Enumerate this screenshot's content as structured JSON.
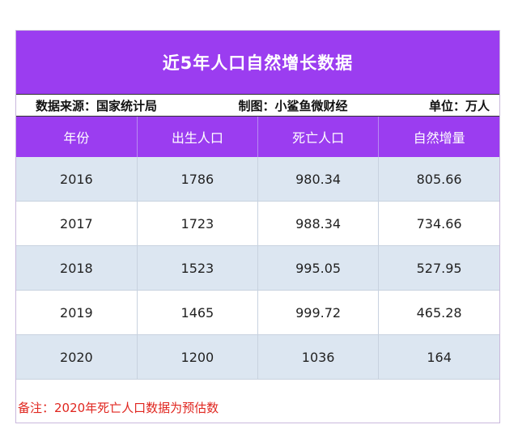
{
  "title": "近5年人口自然增长数据",
  "meta": {
    "source": "数据来源：国家统计局",
    "maker": "制图：小鲨鱼微财经",
    "unit": "单位：万人"
  },
  "headers": [
    "年份",
    "出生人口",
    "死亡人口",
    "自然增量"
  ],
  "rows": [
    [
      "2016",
      "1786",
      "980.34",
      "805.66"
    ],
    [
      "2017",
      "1723",
      "988.34",
      "734.66"
    ],
    [
      "2018",
      "1523",
      "995.05",
      "527.95"
    ],
    [
      "2019",
      "1465",
      "999.72",
      "465.28"
    ],
    [
      "2020",
      "1200",
      "1036",
      "164"
    ]
  ],
  "note": "备注：2020年死亡人口数据为预估数",
  "colors": {
    "header_bg": "#9b3df0",
    "shaded_row": "#dce6f1",
    "note_text": "#e0261f"
  }
}
